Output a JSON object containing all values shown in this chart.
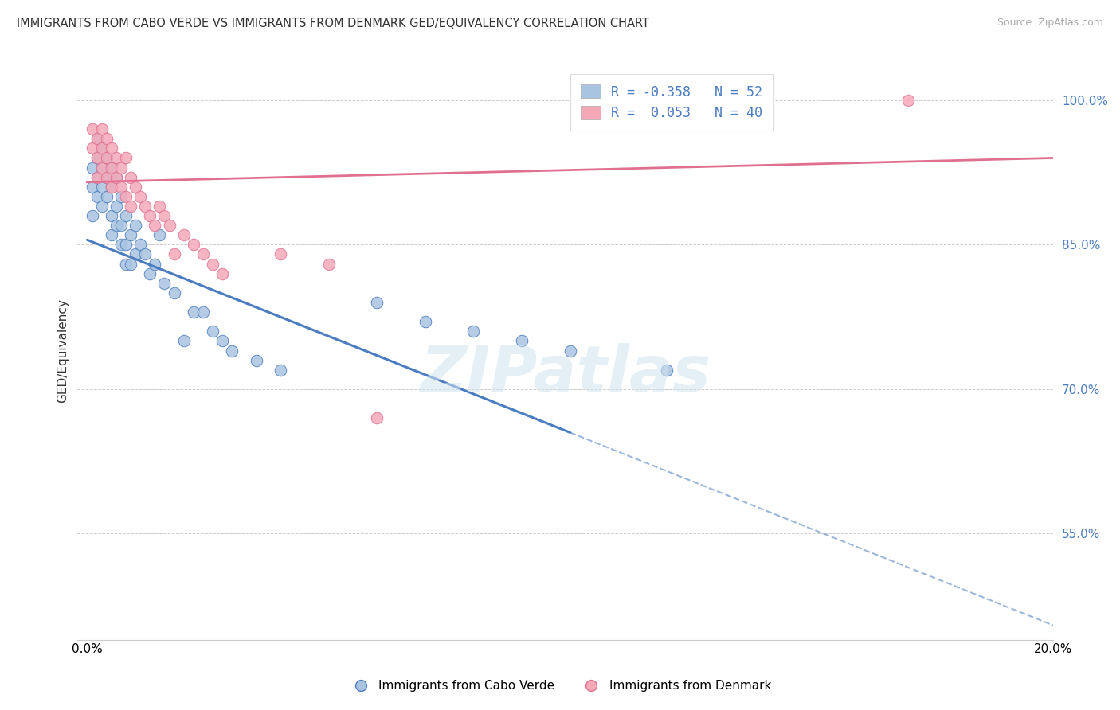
{
  "title": "IMMIGRANTS FROM CABO VERDE VS IMMIGRANTS FROM DENMARK GED/EQUIVALENCY CORRELATION CHART",
  "source": "Source: ZipAtlas.com",
  "ylabel": "GED/Equivalency",
  "xlim": [
    0.0,
    0.2
  ],
  "ylim": [
    0.44,
    1.04
  ],
  "yticks": [
    0.55,
    0.7,
    0.85,
    1.0
  ],
  "ytick_labels": [
    "55.0%",
    "70.0%",
    "85.0%",
    "100.0%"
  ],
  "legend_label1": "R = -0.358   N = 52",
  "legend_label2": "R =  0.053   N = 40",
  "color_blue": "#a8c4e0",
  "color_pink": "#f4a8b8",
  "line_blue": "#4a7cc0",
  "line_pink": "#e07090",
  "watermark": "ZIPatlas",
  "cabo_verde_x": [
    0.001,
    0.001,
    0.001,
    0.002,
    0.002,
    0.002,
    0.002,
    0.003,
    0.003,
    0.003,
    0.003,
    0.004,
    0.004,
    0.004,
    0.005,
    0.005,
    0.005,
    0.005,
    0.006,
    0.006,
    0.006,
    0.007,
    0.007,
    0.007,
    0.008,
    0.008,
    0.008,
    0.009,
    0.009,
    0.01,
    0.01,
    0.011,
    0.012,
    0.013,
    0.014,
    0.015,
    0.016,
    0.018,
    0.02,
    0.022,
    0.024,
    0.026,
    0.028,
    0.03,
    0.035,
    0.04,
    0.06,
    0.07,
    0.08,
    0.09,
    0.1,
    0.12
  ],
  "cabo_verde_y": [
    0.93,
    0.91,
    0.88,
    0.96,
    0.94,
    0.92,
    0.9,
    0.95,
    0.93,
    0.91,
    0.89,
    0.94,
    0.92,
    0.9,
    0.93,
    0.91,
    0.88,
    0.86,
    0.92,
    0.89,
    0.87,
    0.9,
    0.87,
    0.85,
    0.88,
    0.85,
    0.83,
    0.86,
    0.83,
    0.87,
    0.84,
    0.85,
    0.84,
    0.82,
    0.83,
    0.86,
    0.81,
    0.8,
    0.75,
    0.78,
    0.78,
    0.76,
    0.75,
    0.74,
    0.73,
    0.72,
    0.79,
    0.77,
    0.76,
    0.75,
    0.74,
    0.72
  ],
  "denmark_x": [
    0.001,
    0.001,
    0.002,
    0.002,
    0.002,
    0.003,
    0.003,
    0.003,
    0.004,
    0.004,
    0.004,
    0.005,
    0.005,
    0.005,
    0.006,
    0.006,
    0.007,
    0.007,
    0.008,
    0.008,
    0.009,
    0.009,
    0.01,
    0.011,
    0.012,
    0.013,
    0.014,
    0.015,
    0.016,
    0.017,
    0.018,
    0.02,
    0.022,
    0.024,
    0.026,
    0.028,
    0.04,
    0.05,
    0.06,
    0.17
  ],
  "denmark_y": [
    0.97,
    0.95,
    0.96,
    0.94,
    0.92,
    0.97,
    0.95,
    0.93,
    0.96,
    0.94,
    0.92,
    0.95,
    0.93,
    0.91,
    0.94,
    0.92,
    0.93,
    0.91,
    0.94,
    0.9,
    0.92,
    0.89,
    0.91,
    0.9,
    0.89,
    0.88,
    0.87,
    0.89,
    0.88,
    0.87,
    0.84,
    0.86,
    0.85,
    0.84,
    0.83,
    0.82,
    0.84,
    0.83,
    0.67,
    1.0
  ],
  "blue_line_x0": 0.0,
  "blue_line_y0": 0.855,
  "blue_line_x1": 0.1,
  "blue_line_y1": 0.655,
  "blue_line_dash_x1": 0.2,
  "blue_line_dash_y1": 0.455,
  "pink_line_x0": 0.0,
  "pink_line_y0": 0.915,
  "pink_line_x1": 0.2,
  "pink_line_y1": 0.94,
  "background_color": "#ffffff",
  "grid_color": "#cccccc"
}
